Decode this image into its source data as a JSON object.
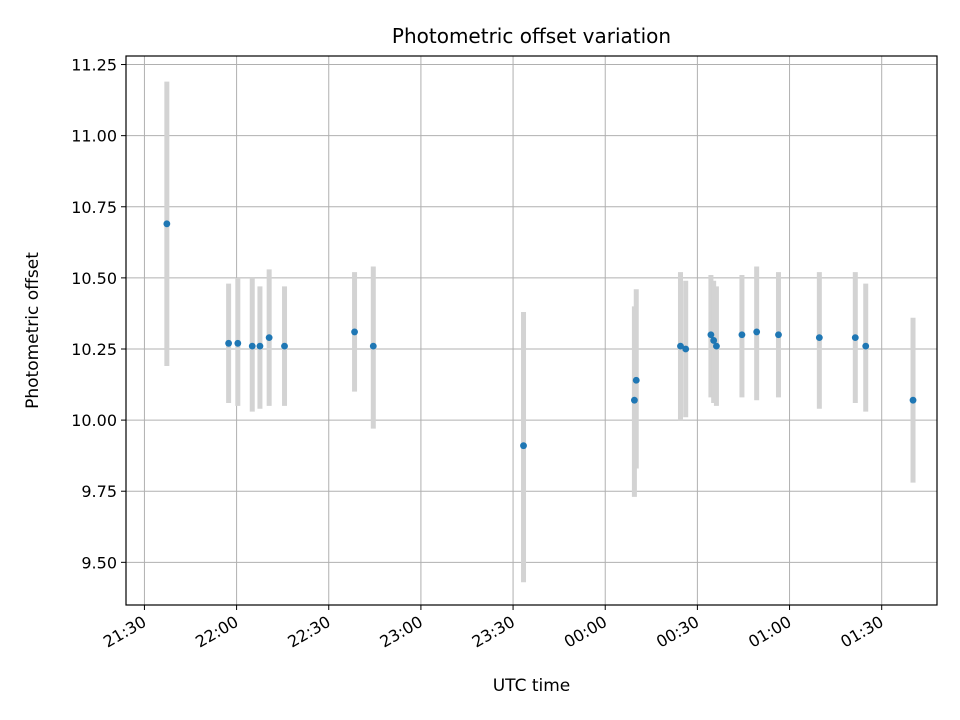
{
  "chart_data": {
    "type": "scatter",
    "title": "Photometric offset variation",
    "xlabel": "UTC time",
    "ylabel": "Photometric offset",
    "x_unit": "minutes",
    "xlim": [
      -6,
      258
    ],
    "ylim": [
      9.35,
      11.28
    ],
    "grid": true,
    "x_ticks": [
      {
        "value": 0,
        "label": "21:30"
      },
      {
        "value": 30,
        "label": "22:00"
      },
      {
        "value": 60,
        "label": "22:30"
      },
      {
        "value": 90,
        "label": "23:00"
      },
      {
        "value": 120,
        "label": "23:30"
      },
      {
        "value": 150,
        "label": "00:00"
      },
      {
        "value": 180,
        "label": "00:30"
      },
      {
        "value": 210,
        "label": "01:00"
      },
      {
        "value": 240,
        "label": "01:30"
      }
    ],
    "y_ticks": [
      9.5,
      9.75,
      10.0,
      10.25,
      10.5,
      10.75,
      11.0,
      11.25
    ],
    "point_color": "#1f77b4",
    "errorbar_color": "#d3d3d3",
    "points": [
      {
        "x": 7.3,
        "y": 10.69,
        "lo": 10.19,
        "hi": 11.19
      },
      {
        "x": 27.4,
        "y": 10.27,
        "lo": 10.06,
        "hi": 10.48
      },
      {
        "x": 30.4,
        "y": 10.27,
        "lo": 10.05,
        "hi": 10.5
      },
      {
        "x": 35.1,
        "y": 10.26,
        "lo": 10.03,
        "hi": 10.5
      },
      {
        "x": 37.6,
        "y": 10.26,
        "lo": 10.04,
        "hi": 10.47
      },
      {
        "x": 40.6,
        "y": 10.29,
        "lo": 10.05,
        "hi": 10.53
      },
      {
        "x": 45.6,
        "y": 10.26,
        "lo": 10.05,
        "hi": 10.47
      },
      {
        "x": 68.4,
        "y": 10.31,
        "lo": 10.1,
        "hi": 10.52
      },
      {
        "x": 74.5,
        "y": 10.26,
        "lo": 9.97,
        "hi": 10.54
      },
      {
        "x": 123.4,
        "y": 9.91,
        "lo": 9.43,
        "hi": 10.38
      },
      {
        "x": 159.5,
        "y": 10.07,
        "lo": 9.73,
        "hi": 10.4
      },
      {
        "x": 160.1,
        "y": 10.14,
        "lo": 9.83,
        "hi": 10.46
      },
      {
        "x": 174.5,
        "y": 10.26,
        "lo": 10.0,
        "hi": 10.52
      },
      {
        "x": 176.2,
        "y": 10.25,
        "lo": 10.01,
        "hi": 10.49
      },
      {
        "x": 184.4,
        "y": 10.3,
        "lo": 10.08,
        "hi": 10.51
      },
      {
        "x": 185.3,
        "y": 10.28,
        "lo": 10.06,
        "hi": 10.49
      },
      {
        "x": 186.2,
        "y": 10.26,
        "lo": 10.05,
        "hi": 10.47
      },
      {
        "x": 194.5,
        "y": 10.3,
        "lo": 10.08,
        "hi": 10.51
      },
      {
        "x": 199.3,
        "y": 10.31,
        "lo": 10.07,
        "hi": 10.54
      },
      {
        "x": 206.4,
        "y": 10.3,
        "lo": 10.08,
        "hi": 10.52
      },
      {
        "x": 219.7,
        "y": 10.29,
        "lo": 10.04,
        "hi": 10.52
      },
      {
        "x": 231.4,
        "y": 10.29,
        "lo": 10.06,
        "hi": 10.52
      },
      {
        "x": 234.8,
        "y": 10.26,
        "lo": 10.03,
        "hi": 10.48
      },
      {
        "x": 250.2,
        "y": 10.07,
        "lo": 9.78,
        "hi": 10.36
      }
    ]
  }
}
